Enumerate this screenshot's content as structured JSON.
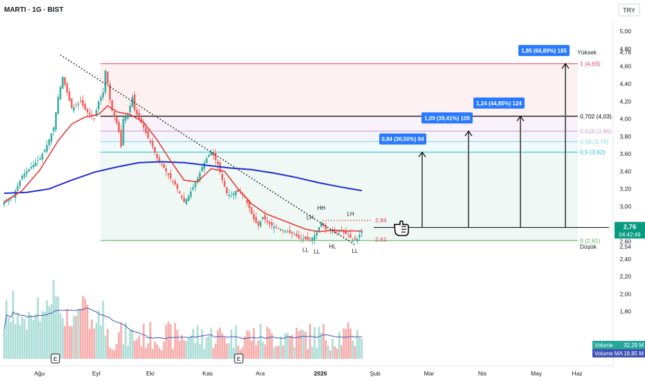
{
  "header": {
    "title": "MARTI · 1G · BIST",
    "currency": "TRY"
  },
  "colors": {
    "up": "#26a69a",
    "down": "#ef5350",
    "ema_fast": "#e53935",
    "ema_slow": "#1e2ad8",
    "vol_ma": "#3f51b5",
    "fib_top": "#e53950",
    "fib_0702": "#000000",
    "fib_0618": "#c79bd6",
    "fib_056": "#7fd6e6",
    "fib_05": "#23b7d2",
    "fib_0": "#4caf50",
    "target_box": "#2979ff",
    "price_badge": "#089981"
  },
  "chart_data": {
    "type": "candlestick",
    "x_ticks": [
      "Ağu",
      "Eyl",
      "Eki",
      "Kas",
      "Ara",
      "2026",
      "Şub",
      "Mar",
      "Nis",
      "May",
      "Haz"
    ],
    "y_ticks": [
      "5,00",
      "4,80",
      "4,60",
      "4,40",
      "4,20",
      "4,00",
      "3,80",
      "3,60",
      "3,40",
      "3,20",
      "3,00",
      "2,80",
      "2,60",
      "2,40",
      "2,20",
      "2,00",
      "1,80"
    ],
    "ylim": [
      1.6,
      5.08
    ],
    "grid": false,
    "price_path": [
      [
        0,
        3.05
      ],
      [
        4,
        3.12
      ],
      [
        8,
        3.35
      ],
      [
        12,
        3.45
      ],
      [
        16,
        3.55
      ],
      [
        19,
        3.7
      ],
      [
        22,
        3.9
      ],
      [
        24,
        4.25
      ],
      [
        26,
        4.48
      ],
      [
        28,
        4.3
      ],
      [
        30,
        4.12
      ],
      [
        32,
        4.15
      ],
      [
        34,
        4.2
      ],
      [
        36,
        4.1
      ],
      [
        38,
        4.05
      ],
      [
        40,
        4.0
      ],
      [
        42,
        4.2
      ],
      [
        44,
        4.3
      ],
      [
        45,
        4.55
      ],
      [
        46,
        4.4
      ],
      [
        47,
        4.22
      ],
      [
        48,
        4.1
      ],
      [
        50,
        3.95
      ],
      [
        51,
        3.85
      ],
      [
        52,
        3.68
      ],
      [
        53,
        4.0
      ],
      [
        54,
        4.02
      ],
      [
        55,
        4.05
      ],
      [
        56,
        4.15
      ],
      [
        57,
        4.25
      ],
      [
        58,
        4.1
      ],
      [
        60,
        4.0
      ],
      [
        62,
        3.9
      ],
      [
        64,
        3.78
      ],
      [
        66,
        3.68
      ],
      [
        68,
        3.55
      ],
      [
        70,
        3.48
      ],
      [
        72,
        3.4
      ],
      [
        74,
        3.32
      ],
      [
        76,
        3.25
      ],
      [
        78,
        3.15
      ],
      [
        80,
        3.05
      ],
      [
        82,
        3.12
      ],
      [
        84,
        3.22
      ],
      [
        86,
        3.32
      ],
      [
        88,
        3.45
      ],
      [
        90,
        3.55
      ],
      [
        92,
        3.62
      ],
      [
        93,
        3.58
      ],
      [
        95,
        3.48
      ],
      [
        97,
        3.3
      ],
      [
        99,
        3.15
      ],
      [
        101,
        3.12
      ],
      [
        103,
        3.18
      ],
      [
        105,
        3.15
      ],
      [
        107,
        3.1
      ],
      [
        109,
        2.98
      ],
      [
        111,
        2.85
      ],
      [
        113,
        2.78
      ],
      [
        115,
        2.88
      ],
      [
        117,
        2.82
      ],
      [
        119,
        2.78
      ],
      [
        121,
        2.76
      ],
      [
        123,
        2.74
      ],
      [
        125,
        2.72
      ],
      [
        127,
        2.7
      ],
      [
        129,
        2.68
      ],
      [
        131,
        2.64
      ],
      [
        133,
        2.63
      ],
      [
        135,
        2.62
      ],
      [
        137,
        2.64
      ],
      [
        139,
        2.7
      ],
      [
        141,
        2.82
      ],
      [
        143,
        2.74
      ],
      [
        145,
        2.72
      ],
      [
        147,
        2.7
      ],
      [
        149,
        2.73
      ],
      [
        151,
        2.7
      ],
      [
        153,
        2.67
      ],
      [
        155,
        2.62
      ],
      [
        157,
        2.63
      ],
      [
        159,
        2.72
      ]
    ],
    "ema_fast": [
      [
        0,
        3.05
      ],
      [
        8,
        3.18
      ],
      [
        16,
        3.42
      ],
      [
        24,
        3.75
      ],
      [
        30,
        3.94
      ],
      [
        36,
        4.02
      ],
      [
        42,
        4.05
      ],
      [
        46,
        4.15
      ],
      [
        50,
        4.08
      ],
      [
        56,
        4.05
      ],
      [
        62,
        3.96
      ],
      [
        68,
        3.76
      ],
      [
        74,
        3.52
      ],
      [
        80,
        3.3
      ],
      [
        86,
        3.28
      ],
      [
        92,
        3.43
      ],
      [
        98,
        3.4
      ],
      [
        104,
        3.2
      ],
      [
        110,
        3.03
      ],
      [
        116,
        2.92
      ],
      [
        122,
        2.86
      ],
      [
        128,
        2.8
      ],
      [
        134,
        2.74
      ],
      [
        140,
        2.71
      ],
      [
        146,
        2.73
      ],
      [
        152,
        2.72
      ],
      [
        159,
        2.72
      ]
    ],
    "ema_slow": [
      [
        0,
        3.15
      ],
      [
        10,
        3.16
      ],
      [
        20,
        3.2
      ],
      [
        30,
        3.3
      ],
      [
        40,
        3.39
      ],
      [
        50,
        3.45
      ],
      [
        60,
        3.5
      ],
      [
        70,
        3.51
      ],
      [
        80,
        3.5
      ],
      [
        90,
        3.47
      ],
      [
        100,
        3.44
      ],
      [
        110,
        3.42
      ],
      [
        120,
        3.38
      ],
      [
        130,
        3.33
      ],
      [
        140,
        3.27
      ],
      [
        150,
        3.22
      ],
      [
        159,
        3.18
      ]
    ],
    "trendline": [
      [
        25,
        4.73
      ],
      [
        156,
        2.56
      ]
    ],
    "fib_levels": [
      {
        "ratio": "1",
        "price": 4.63,
        "label": "1 (4,63)"
      },
      {
        "ratio": "0.702",
        "price": 4.03,
        "label": "0,702 (4,03)"
      },
      {
        "ratio": "0.618",
        "price": 3.86,
        "label": "0,618 (3,86)"
      },
      {
        "ratio": "0.56",
        "price": 3.74,
        "label": "0,56 (3,74)"
      },
      {
        "ratio": "0.5",
        "price": 3.62,
        "label": "0,5 (3,62)"
      },
      {
        "ratio": "0",
        "price": 2.61,
        "label": "0 (2,61)"
      }
    ],
    "swing_markers": [
      {
        "label": "LL",
        "x": 134,
        "price": 2.56
      },
      {
        "label": "LL",
        "x": 139,
        "price": 2.54
      },
      {
        "label": "HH",
        "x": 141,
        "price": 2.93
      },
      {
        "label": "LH",
        "x": 136,
        "price": 2.82
      },
      {
        "label": "HL",
        "x": 146,
        "price": 2.6
      },
      {
        "label": "LH",
        "x": 154,
        "price": 2.86
      },
      {
        "label": "LL",
        "x": 156,
        "price": 2.55
      }
    ],
    "resistance": {
      "price": 2.84,
      "label": "2,84"
    },
    "support": {
      "price": 2.61,
      "label": "2,61"
    },
    "targets": [
      {
        "label": "0,84 (30,50%) 84",
        "target": 3.62
      },
      {
        "label": "1,09 (39,41%) 109",
        "target": 3.86
      },
      {
        "label": "1,24 (44,85%) 124",
        "target": 4.03
      },
      {
        "label": "1,85 (66,89%) 185",
        "target": 4.63
      }
    ],
    "current_price": {
      "value": "2,76",
      "countdown": "04:42:49"
    },
    "yuksek": {
      "label": "Yüksek",
      "value": "4,76"
    },
    "dusuk": {
      "label": "Düşük",
      "value": "2,54"
    },
    "volume_legend": [
      {
        "name": "Volume",
        "value": "32,29 M"
      },
      {
        "name": "Volume MA",
        "value": "18,85 M"
      }
    ],
    "event_markers": [
      "E",
      "E"
    ]
  }
}
